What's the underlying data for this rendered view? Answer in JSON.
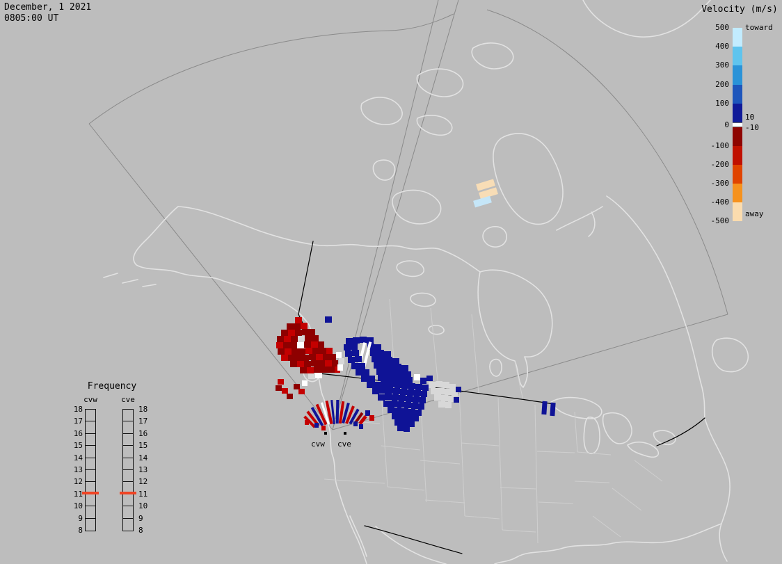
{
  "header": {
    "date": "December, 1 2021",
    "time": "0805:00 UT"
  },
  "velocity_legend": {
    "title": "Velocity (m/s)",
    "unit_top": "toward",
    "unit_bottom": "away",
    "ticks": [
      "500",
      "400",
      "300",
      "200",
      "100",
      "0",
      "-100",
      "-200",
      "-300",
      "-400",
      "-500"
    ],
    "near_zero_labels": [
      "10",
      "-10"
    ],
    "toward_colors": [
      "#c2ecff",
      "#5fc4ee",
      "#2a93d8",
      "#1e56bc",
      "#101a99"
    ],
    "away_colors": [
      "#8e0400",
      "#c01000",
      "#e04400",
      "#f6921e",
      "#fbdcae"
    ],
    "zero_band_color": "#ffffff"
  },
  "frequency_legend": {
    "title": "Frequency",
    "radars": [
      "cvw",
      "cve"
    ],
    "ticks": [
      "18",
      "17",
      "16",
      "15",
      "14",
      "13",
      "12",
      "11",
      "10",
      "9",
      "8"
    ],
    "marker_value": "11",
    "marker_color": "#f04424"
  },
  "map": {
    "site_labels": [
      "cvw",
      "cve"
    ],
    "background": "#bdbdbd",
    "coast_color": "#e2e2e2",
    "state_color": "#cfcfcf",
    "country_border_color": "#000000",
    "fov_color": "#8a8a8a"
  },
  "chart_data": {
    "type": "geo-velocity-map",
    "datetime": "December, 1 2021 0805:00 UT",
    "radars": [
      "cvw",
      "cve"
    ],
    "velocity_scale": {
      "min": -500,
      "max": 500,
      "units": "m/s",
      "near_zero_threshold": 10,
      "toward_label": "toward",
      "away_label": "away"
    },
    "frequency_scale": {
      "min": 8,
      "max": 18,
      "marker": 11
    },
    "palette": {
      "dr": "#8e0000",
      "r": "#c40000",
      "b": "#0f1396",
      "lb": "#c5e6f8",
      "cr": "#f8ddb6",
      "w": "#ffffff",
      "g": "#d8d8d8"
    },
    "cells": [
      [
        424,
        456,
        10,
        9,
        "r",
        0
      ],
      [
        412,
        465,
        10,
        9,
        "dr",
        0
      ],
      [
        422,
        465,
        10,
        9,
        "dr",
        0
      ],
      [
        432,
        464,
        10,
        9,
        "r",
        0
      ],
      [
        404,
        474,
        10,
        9,
        "dr",
        0
      ],
      [
        414,
        474,
        10,
        9,
        "r",
        0
      ],
      [
        424,
        474,
        10,
        9,
        "dr",
        0
      ],
      [
        434,
        473,
        10,
        9,
        "dr",
        0
      ],
      [
        444,
        473,
        9,
        9,
        "dr",
        0
      ],
      [
        398,
        483,
        10,
        9,
        "dr",
        0
      ],
      [
        408,
        483,
        10,
        9,
        "r",
        0
      ],
      [
        418,
        483,
        10,
        9,
        "dr",
        0
      ],
      [
        428,
        483,
        10,
        9,
        "g",
        0
      ],
      [
        438,
        482,
        10,
        9,
        "dr",
        0
      ],
      [
        448,
        482,
        10,
        9,
        "dr",
        0
      ],
      [
        397,
        492,
        10,
        9,
        "r",
        0
      ],
      [
        407,
        492,
        10,
        9,
        "dr",
        0
      ],
      [
        417,
        492,
        10,
        9,
        "dr",
        0
      ],
      [
        427,
        492,
        10,
        9,
        "w",
        0
      ],
      [
        437,
        491,
        10,
        9,
        "dr",
        0
      ],
      [
        447,
        491,
        10,
        9,
        "r",
        0
      ],
      [
        457,
        491,
        9,
        9,
        "dr",
        0
      ],
      [
        399,
        501,
        10,
        9,
        "dr",
        0
      ],
      [
        409,
        501,
        10,
        9,
        "r",
        0
      ],
      [
        419,
        501,
        10,
        9,
        "dr",
        0
      ],
      [
        429,
        501,
        10,
        9,
        "dr",
        0
      ],
      [
        439,
        500,
        10,
        9,
        "r",
        0
      ],
      [
        449,
        500,
        10,
        9,
        "dr",
        0
      ],
      [
        459,
        500,
        10,
        9,
        "dr",
        0
      ],
      [
        469,
        500,
        9,
        9,
        "r",
        0
      ],
      [
        404,
        510,
        10,
        9,
        "r",
        0
      ],
      [
        414,
        510,
        10,
        9,
        "dr",
        0
      ],
      [
        424,
        510,
        10,
        9,
        "dr",
        0
      ],
      [
        434,
        510,
        10,
        9,
        "dr",
        0
      ],
      [
        444,
        509,
        10,
        9,
        "dr",
        0
      ],
      [
        454,
        509,
        10,
        9,
        "r",
        0
      ],
      [
        464,
        509,
        10,
        9,
        "dr",
        0
      ],
      [
        474,
        509,
        9,
        9,
        "dr",
        0
      ],
      [
        417,
        519,
        10,
        9,
        "dr",
        0
      ],
      [
        427,
        519,
        10,
        9,
        "r",
        0
      ],
      [
        437,
        519,
        10,
        9,
        "dr",
        0
      ],
      [
        447,
        518,
        10,
        9,
        "dr",
        0
      ],
      [
        457,
        518,
        10,
        9,
        "dr",
        0
      ],
      [
        467,
        518,
        10,
        9,
        "r",
        0
      ],
      [
        477,
        518,
        9,
        9,
        "dr",
        0
      ],
      [
        431,
        528,
        10,
        9,
        "dr",
        0
      ],
      [
        441,
        528,
        10,
        9,
        "r",
        0
      ],
      [
        451,
        527,
        10,
        9,
        "dr",
        0
      ],
      [
        461,
        527,
        10,
        9,
        "dr",
        0
      ],
      [
        471,
        527,
        10,
        9,
        "dr",
        0
      ],
      [
        481,
        527,
        8,
        9,
        "r",
        0
      ],
      [
        443,
        537,
        10,
        8,
        "g",
        0
      ],
      [
        453,
        536,
        10,
        8,
        "w",
        0
      ],
      [
        399,
        545,
        9,
        8,
        "r",
        0
      ],
      [
        396,
        554,
        9,
        8,
        "dr",
        0
      ],
      [
        405,
        558,
        9,
        8,
        "r",
        0
      ],
      [
        422,
        552,
        9,
        8,
        "dr",
        0
      ],
      [
        429,
        559,
        9,
        8,
        "r",
        0
      ],
      [
        412,
        566,
        9,
        8,
        "dr",
        0
      ],
      [
        434,
        547,
        8,
        8,
        "w",
        0
      ],
      [
        467,
        455,
        10,
        9,
        "b",
        0
      ],
      [
        483,
        506,
        8,
        9,
        "w",
        0
      ],
      [
        487,
        515,
        8,
        9,
        "g",
        0
      ],
      [
        485,
        524,
        8,
        9,
        "w",
        0
      ],
      [
        497,
        486,
        10,
        9,
        "b",
        0
      ],
      [
        507,
        485,
        10,
        9,
        "b",
        0
      ],
      [
        517,
        484,
        10,
        9,
        "b",
        0
      ],
      [
        527,
        485,
        10,
        9,
        "b",
        0
      ],
      [
        494,
        495,
        10,
        9,
        "b",
        0
      ],
      [
        504,
        494,
        10,
        9,
        "b",
        0
      ],
      [
        528,
        494,
        10,
        9,
        "b",
        0
      ],
      [
        538,
        495,
        10,
        9,
        "b",
        0
      ],
      [
        517,
        492,
        4,
        44,
        "w",
        14
      ],
      [
        525,
        491,
        4,
        44,
        "w",
        14
      ],
      [
        496,
        504,
        10,
        9,
        "b",
        0
      ],
      [
        506,
        503,
        10,
        9,
        "b",
        0
      ],
      [
        532,
        503,
        10,
        9,
        "b",
        0
      ],
      [
        542,
        503,
        10,
        9,
        "b",
        0
      ],
      [
        552,
        505,
        10,
        9,
        "b",
        0
      ],
      [
        500,
        513,
        10,
        9,
        "b",
        0
      ],
      [
        510,
        512,
        10,
        9,
        "b",
        0
      ],
      [
        534,
        512,
        10,
        9,
        "b",
        0
      ],
      [
        544,
        512,
        10,
        9,
        "b",
        0
      ],
      [
        554,
        513,
        10,
        9,
        "b",
        0
      ],
      [
        564,
        515,
        10,
        9,
        "b",
        0
      ],
      [
        505,
        522,
        10,
        9,
        "b",
        0
      ],
      [
        515,
        522,
        10,
        9,
        "b",
        0
      ],
      [
        537,
        521,
        10,
        9,
        "b",
        0
      ],
      [
        547,
        521,
        10,
        9,
        "b",
        0
      ],
      [
        557,
        522,
        10,
        9,
        "b",
        0
      ],
      [
        567,
        523,
        10,
        9,
        "b",
        0
      ],
      [
        577,
        525,
        10,
        9,
        "b",
        0
      ],
      [
        511,
        531,
        10,
        9,
        "b",
        0
      ],
      [
        521,
        531,
        10,
        9,
        "b",
        0
      ],
      [
        541,
        530,
        10,
        9,
        "b",
        0
      ],
      [
        551,
        530,
        10,
        9,
        "b",
        0
      ],
      [
        561,
        531,
        10,
        9,
        "b",
        0
      ],
      [
        571,
        532,
        10,
        9,
        "b",
        0
      ],
      [
        581,
        534,
        10,
        9,
        "b",
        0
      ],
      [
        519,
        540,
        10,
        9,
        "b",
        0
      ],
      [
        529,
        540,
        10,
        9,
        "b",
        0
      ],
      [
        543,
        539,
        10,
        9,
        "b",
        0
      ],
      [
        553,
        539,
        10,
        9,
        "b",
        0
      ],
      [
        563,
        540,
        10,
        9,
        "b",
        0
      ],
      [
        573,
        541,
        10,
        9,
        "b",
        0
      ],
      [
        583,
        542,
        10,
        9,
        "b",
        0
      ],
      [
        595,
        538,
        9,
        9,
        "w",
        0
      ],
      [
        604,
        543,
        9,
        9,
        "b",
        0
      ],
      [
        527,
        549,
        10,
        9,
        "b",
        0
      ],
      [
        537,
        549,
        10,
        9,
        "b",
        0
      ],
      [
        547,
        548,
        10,
        9,
        "b",
        0
      ],
      [
        557,
        548,
        10,
        9,
        "b",
        0
      ],
      [
        567,
        549,
        10,
        9,
        "b",
        0
      ],
      [
        577,
        550,
        10,
        9,
        "b",
        0
      ],
      [
        587,
        551,
        10,
        9,
        "b",
        0
      ],
      [
        597,
        552,
        10,
        9,
        "b",
        0
      ],
      [
        607,
        553,
        9,
        9,
        "b",
        0
      ],
      [
        616,
        549,
        10,
        9,
        "g",
        0
      ],
      [
        626,
        548,
        10,
        9,
        "g",
        0
      ],
      [
        636,
        549,
        10,
        9,
        "g",
        0
      ],
      [
        646,
        552,
        9,
        9,
        "g",
        0
      ],
      [
        619,
        558,
        10,
        9,
        "g",
        0
      ],
      [
        629,
        558,
        10,
        9,
        "g",
        0
      ],
      [
        639,
        559,
        10,
        9,
        "g",
        0
      ],
      [
        649,
        561,
        9,
        9,
        "g",
        0
      ],
      [
        624,
        567,
        10,
        9,
        "g",
        0
      ],
      [
        634,
        568,
        10,
        9,
        "g",
        0
      ],
      [
        644,
        569,
        9,
        9,
        "g",
        0
      ],
      [
        630,
        577,
        10,
        9,
        "g",
        0
      ],
      [
        640,
        578,
        9,
        9,
        "g",
        0
      ],
      [
        613,
        540,
        9,
        8,
        "b",
        0
      ],
      [
        655,
        556,
        8,
        8,
        "b",
        0
      ],
      [
        652,
        571,
        8,
        8,
        "b",
        0
      ],
      [
        535,
        558,
        10,
        9,
        "b",
        0
      ],
      [
        545,
        557,
        10,
        9,
        "b",
        0
      ],
      [
        555,
        557,
        10,
        9,
        "b",
        0
      ],
      [
        565,
        558,
        10,
        9,
        "b",
        0
      ],
      [
        575,
        559,
        10,
        9,
        "b",
        0
      ],
      [
        585,
        560,
        10,
        9,
        "b",
        0
      ],
      [
        595,
        561,
        10,
        9,
        "b",
        0
      ],
      [
        605,
        562,
        9,
        9,
        "b",
        0
      ],
      [
        543,
        567,
        10,
        9,
        "b",
        0
      ],
      [
        553,
        566,
        10,
        9,
        "b",
        0
      ],
      [
        563,
        567,
        10,
        9,
        "b",
        0
      ],
      [
        573,
        568,
        10,
        9,
        "b",
        0
      ],
      [
        583,
        569,
        10,
        9,
        "b",
        0
      ],
      [
        593,
        570,
        10,
        9,
        "b",
        0
      ],
      [
        603,
        571,
        9,
        9,
        "b",
        0
      ],
      [
        551,
        576,
        10,
        9,
        "b",
        0
      ],
      [
        561,
        576,
        10,
        9,
        "b",
        0
      ],
      [
        571,
        577,
        10,
        9,
        "b",
        0
      ],
      [
        581,
        578,
        10,
        9,
        "b",
        0
      ],
      [
        591,
        579,
        10,
        9,
        "b",
        0
      ],
      [
        601,
        580,
        9,
        9,
        "b",
        0
      ],
      [
        557,
        585,
        10,
        9,
        "b",
        0
      ],
      [
        567,
        586,
        10,
        9,
        "b",
        0
      ],
      [
        577,
        587,
        10,
        9,
        "b",
        0
      ],
      [
        587,
        588,
        10,
        9,
        "b",
        0
      ],
      [
        597,
        589,
        9,
        9,
        "b",
        0
      ],
      [
        563,
        594,
        10,
        9,
        "b",
        0
      ],
      [
        573,
        595,
        10,
        9,
        "b",
        0
      ],
      [
        583,
        596,
        10,
        9,
        "b",
        0
      ],
      [
        593,
        597,
        9,
        9,
        "b",
        0
      ],
      [
        567,
        603,
        10,
        9,
        "b",
        0
      ],
      [
        577,
        604,
        10,
        9,
        "b",
        0
      ],
      [
        587,
        605,
        9,
        9,
        "b",
        0
      ],
      [
        571,
        612,
        9,
        8,
        "b",
        0
      ],
      [
        580,
        613,
        9,
        8,
        "b",
        0
      ],
      [
        779,
        577,
        7,
        19,
        "b",
        4
      ],
      [
        791,
        579,
        7,
        19,
        "b",
        4
      ],
      [
        685,
        261,
        26,
        10,
        "cr",
        -17
      ],
      [
        689,
        273,
        26,
        10,
        "cr",
        -17
      ],
      [
        681,
        285,
        25,
        10,
        "lb",
        -17
      ],
      [
        448,
        589,
        4,
        26,
        "r",
        -38
      ],
      [
        454,
        584,
        4,
        30,
        "b",
        -30
      ],
      [
        460,
        580,
        4,
        32,
        "r",
        -24
      ],
      [
        466,
        578,
        3,
        33,
        "w",
        -18
      ],
      [
        471,
        576,
        4,
        34,
        "r",
        -12
      ],
      [
        477,
        575,
        3,
        35,
        "b",
        -6
      ],
      [
        483,
        575,
        4,
        34,
        "b",
        1
      ],
      [
        489,
        577,
        4,
        32,
        "r",
        8
      ],
      [
        495,
        579,
        4,
        30,
        "b",
        15
      ],
      [
        501,
        583,
        4,
        27,
        "r",
        22
      ],
      [
        507,
        587,
        4,
        24,
        "b",
        29
      ],
      [
        443,
        596,
        4,
        21,
        "r",
        -44
      ],
      [
        513,
        592,
        4,
        20,
        "dr",
        35
      ],
      [
        519,
        597,
        5,
        14,
        "r",
        38
      ],
      [
        525,
        590,
        7,
        8,
        "b",
        0
      ],
      [
        531,
        597,
        7,
        8,
        "r",
        0
      ],
      [
        438,
        604,
        6,
        7,
        "r",
        0
      ],
      [
        452,
        608,
        6,
        7,
        "b",
        0
      ],
      [
        462,
        612,
        6,
        7,
        "r",
        0
      ],
      [
        508,
        606,
        6,
        7,
        "b",
        0
      ],
      [
        516,
        610,
        6,
        7,
        "b",
        0
      ]
    ]
  }
}
